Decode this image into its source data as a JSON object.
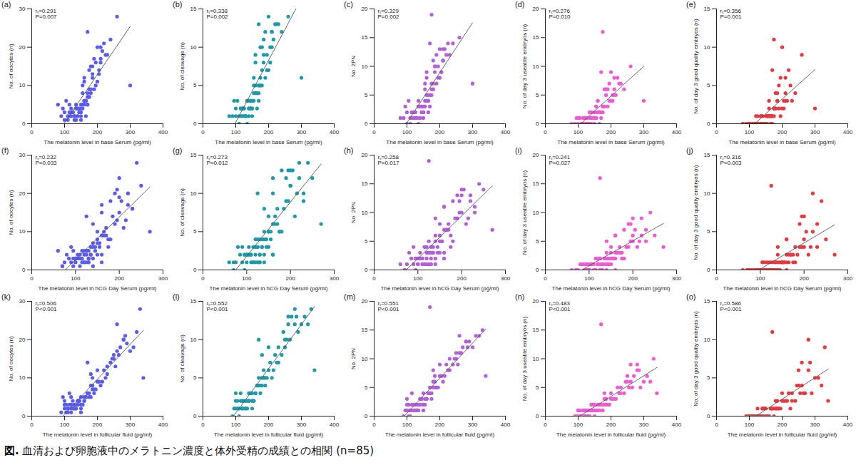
{
  "chart_data": {
    "type": "scatter",
    "caption": "図. 血清および卵胞液中のメラトニン濃度と体外受精の成績との相関 (n=85)",
    "columns": [
      {
        "ylabel": "No. of oocytes (n)",
        "ylim": [
          0,
          30
        ],
        "yticks": [
          0,
          10,
          20,
          30
        ],
        "color": "#5a5cf0",
        "values": [
          3,
          2,
          15,
          4,
          20,
          5,
          6,
          10,
          1,
          24,
          2,
          17,
          3,
          8,
          11,
          5,
          4,
          18,
          2,
          1,
          12,
          3,
          9,
          4,
          28,
          6,
          7,
          2,
          19,
          5,
          3,
          16,
          1,
          8,
          2,
          6,
          14,
          3,
          4,
          10,
          22,
          2,
          7,
          3,
          12,
          5,
          14,
          4,
          2,
          17,
          6,
          3,
          13,
          1,
          20,
          4,
          8,
          2,
          5,
          18,
          3,
          9,
          2,
          11,
          10,
          3,
          5,
          4,
          16,
          1,
          6,
          2,
          15,
          3,
          7,
          4,
          21,
          3,
          6,
          5,
          9,
          4,
          13,
          2,
          5
        ]
      },
      {
        "ylabel": "No. of cleavage (n)",
        "ylim": [
          0,
          15
        ],
        "yticks": [
          0,
          5,
          10,
          15
        ],
        "color": "#1b9aa8",
        "values": [
          2,
          1,
          10,
          3,
          12,
          3,
          4,
          6,
          0,
          13,
          1,
          12,
          2,
          5,
          7,
          1,
          3,
          13,
          2,
          1,
          8,
          2,
          6,
          3,
          14,
          3,
          5,
          2,
          11,
          4,
          2,
          9,
          0,
          5,
          1,
          4,
          8,
          2,
          2,
          6,
          12,
          1,
          5,
          2,
          9,
          3,
          10,
          3,
          1,
          12,
          4,
          2,
          9,
          1,
          14,
          3,
          5,
          1,
          4,
          13,
          2,
          7,
          1,
          8,
          7,
          2,
          3,
          2,
          10,
          1,
          4,
          2,
          11,
          1,
          5,
          3,
          13,
          2,
          5,
          2,
          6,
          3,
          10,
          1,
          4
        ]
      },
      {
        "ylabel": "No. 2PN",
        "ylim": [
          0,
          20
        ],
        "yticks": [
          0,
          5,
          10,
          15,
          20
        ],
        "color": "#b25fd9",
        "values": [
          2,
          1,
          11,
          3,
          13,
          4,
          5,
          7,
          0,
          14,
          1,
          12,
          2,
          6,
          8,
          1,
          3,
          12,
          2,
          1,
          9,
          2,
          7,
          3,
          15,
          4,
          5,
          1,
          13,
          4,
          2,
          10,
          0,
          6,
          1,
          4,
          9,
          3,
          2,
          7,
          14,
          1,
          5,
          2,
          9,
          3,
          19,
          3,
          1,
          11,
          4,
          2,
          10,
          1,
          13,
          3,
          5,
          1,
          4,
          14,
          2,
          7,
          1,
          8,
          8,
          2,
          3,
          3,
          11,
          0,
          5,
          2,
          10,
          1,
          6,
          3,
          12,
          2,
          4,
          2,
          7,
          3,
          9,
          1,
          5
        ]
      },
      {
        "ylabel": "No. of day 3 useable embryos (n)",
        "ylim": [
          0,
          20
        ],
        "yticks": [
          0,
          5,
          10,
          15,
          20
        ],
        "color": "#f05bd3",
        "values": [
          1,
          0,
          6,
          1,
          8,
          2,
          2,
          4,
          0,
          9,
          1,
          6,
          1,
          3,
          4,
          0,
          1,
          7,
          0,
          0,
          5,
          1,
          3,
          2,
          10,
          1,
          2,
          0,
          5,
          2,
          1,
          7,
          0,
          3,
          0,
          2,
          4,
          1,
          1,
          3,
          6,
          0,
          2,
          1,
          4,
          2,
          16,
          1,
          0,
          6,
          2,
          0,
          5,
          0,
          9,
          1,
          2,
          0,
          1,
          7,
          1,
          3,
          0,
          4,
          4,
          1,
          1,
          2,
          5,
          0,
          2,
          1,
          6,
          0,
          3,
          1,
          8,
          1,
          2,
          0,
          3,
          1,
          5,
          0,
          2
        ]
      },
      {
        "ylabel": "No. of day 3 good quality embryos (n)",
        "ylim": [
          0,
          15
        ],
        "yticks": [
          0,
          5,
          10,
          15
        ],
        "color": "#e8383f",
        "values": [
          0,
          0,
          4,
          0,
          6,
          1,
          1,
          2,
          0,
          7,
          0,
          5,
          1,
          1,
          2,
          0,
          0,
          3,
          0,
          0,
          3,
          0,
          2,
          1,
          9,
          0,
          1,
          0,
          3,
          1,
          0,
          6,
          0,
          2,
          0,
          1,
          2,
          0,
          1,
          1,
          4,
          0,
          1,
          0,
          3,
          0,
          11,
          1,
          0,
          4,
          1,
          0,
          3,
          0,
          10,
          0,
          1,
          0,
          1,
          5,
          0,
          2,
          0,
          2,
          1,
          0,
          0,
          1,
          3,
          0,
          1,
          0,
          4,
          0,
          2,
          1,
          7,
          0,
          1,
          0,
          2,
          0,
          3,
          0,
          1
        ]
      }
    ],
    "rows": [
      {
        "xlabel": "The melatonin level in base Serum (pg/ml)",
        "xlim": [
          0,
          400
        ],
        "xticks": [
          0,
          100,
          200,
          300,
          400
        ],
        "x": [
          150,
          120,
          180,
          95,
          210,
          135,
          160,
          300,
          110,
          170,
          140,
          190,
          125,
          155,
          200,
          80,
          145,
          230,
          165,
          130,
          185,
          115,
          175,
          150,
          260,
          105,
          170,
          140,
          215,
          160,
          125,
          195,
          135,
          180,
          90,
          165,
          205,
          145,
          120,
          155,
          240,
          130,
          175,
          100,
          160,
          150,
          175,
          140,
          115,
          210,
          165,
          125,
          185,
          150,
          200,
          135,
          170,
          110,
          155,
          225,
          145,
          180,
          130,
          160,
          195,
          120,
          170,
          140,
          210,
          100,
          165,
          150,
          185,
          125,
          175,
          135,
          220,
          145,
          160,
          115,
          190,
          155,
          205,
          130,
          170
        ],
        "panels": [
          {
            "label": "(a)",
            "annotations": [
              "rₛ=0.291",
              "P=0.007"
            ]
          },
          {
            "label": "(b)",
            "annotations": [
              "rₛ=0.338",
              "P=0.002"
            ]
          },
          {
            "label": "(c)",
            "annotations": [
              "rₛ=0.329",
              "P=0.002"
            ]
          },
          {
            "label": "(d)",
            "annotations": [
              "rₛ=0.276",
              "P=0.010"
            ]
          },
          {
            "label": "(e)",
            "annotations": [
              "rₛ=0.356",
              "P=0.001"
            ]
          }
        ]
      },
      {
        "xlabel": "The melatonin level in hCG Day Serum (pg/ml)",
        "xlim": [
          0,
          300
        ],
        "xticks": [
          0,
          100,
          200,
          300
        ],
        "x": [
          130,
          100,
          160,
          80,
          190,
          115,
          140,
          270,
          70,
          200,
          120,
          220,
          105,
          150,
          210,
          60,
          125,
          180,
          160,
          110,
          140,
          95,
          170,
          135,
          240,
          90,
          155,
          100,
          200,
          120,
          140,
          230,
          95,
          175,
          75,
          145,
          185,
          130,
          110,
          165,
          250,
          115,
          150,
          85,
          190,
          125,
          125,
          105,
          130,
          160,
          135,
          100,
          195,
          140,
          220,
          120,
          180,
          90,
          130,
          205,
          110,
          165,
          125,
          170,
          150,
          105,
          145,
          160,
          230,
          70,
          155,
          120,
          200,
          115,
          140,
          150,
          195,
          100,
          175,
          95,
          160,
          135,
          215,
          130,
          125
        ],
        "panels": [
          {
            "label": "(f)",
            "annotations": [
              "rₛ=0.232",
              "P=0.033"
            ]
          },
          {
            "label": "(g)",
            "annotations": [
              "rₛ=0.273",
              "P=0.012"
            ]
          },
          {
            "label": "(h)",
            "annotations": [
              "rₛ=0.258",
              "P=0.017"
            ]
          },
          {
            "label": "(i)",
            "annotations": [
              "rₛ=0.241",
              "P=0.027"
            ]
          },
          {
            "label": "(j)",
            "annotations": [
              "rₛ=0.316",
              "P=0.003"
            ]
          }
        ]
      },
      {
        "xlabel": "The melatonin level in follicular fluid (pg/ml)",
        "xlim": [
          0,
          400
        ],
        "xticks": [
          0,
          100,
          200,
          300,
          400
        ],
        "x": [
          120,
          110,
          250,
          100,
          280,
          150,
          170,
          340,
          90,
          260,
          130,
          300,
          140,
          180,
          230,
          95,
          160,
          270,
          150,
          120,
          220,
          105,
          200,
          145,
          330,
          115,
          190,
          130,
          290,
          165,
          140,
          250,
          110,
          210,
          100,
          175,
          240,
          155,
          125,
          185,
          320,
          135,
          195,
          100,
          200,
          160,
          170,
          145,
          120,
          260,
          170,
          130,
          230,
          150,
          280,
          140,
          185,
          110,
          165,
          310,
          150,
          205,
          125,
          180,
          225,
          115,
          175,
          140,
          265,
          105,
          190,
          135,
          245,
          120,
          185,
          145,
          285,
          155,
          170,
          120,
          215,
          160,
          255,
          130,
          180
        ],
        "panels": [
          {
            "label": "(k)",
            "annotations": [
              "rₛ=0.506",
              "P<0.001"
            ]
          },
          {
            "label": "(l)",
            "annotations": [
              "rₛ=0.552",
              "P<0.001"
            ]
          },
          {
            "label": "(m)",
            "annotations": [
              "rₛ=0.551",
              "P<0.001"
            ]
          },
          {
            "label": "(n)",
            "annotations": [
              "rₛ=0.483",
              "P<0.001"
            ]
          },
          {
            "label": "(o)",
            "annotations": [
              "rₛ=0.586",
              "P<0.001"
            ]
          }
        ]
      }
    ]
  }
}
